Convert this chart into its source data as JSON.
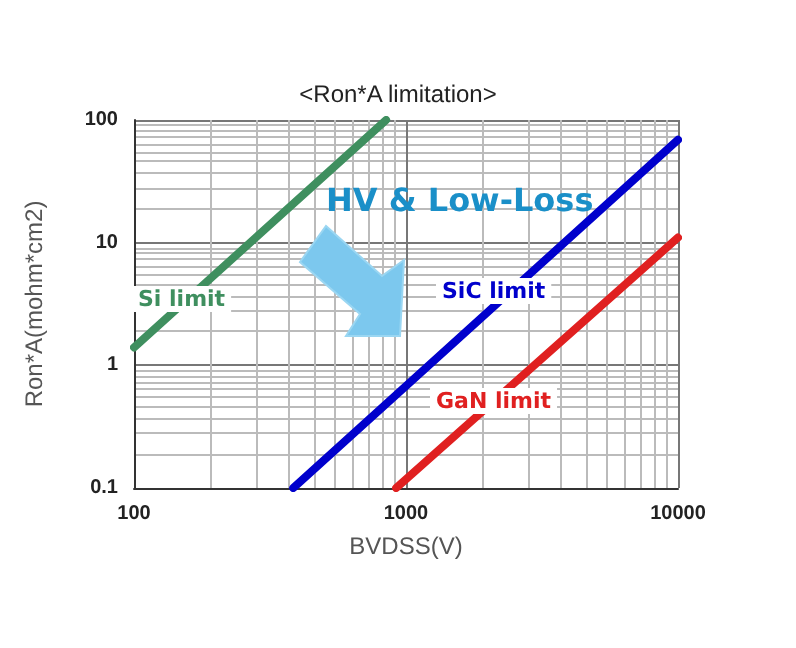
{
  "chart_data": {
    "type": "line",
    "title": "<Ron*A limitation>",
    "xlabel": "BVDSS(V)",
    "ylabel": "Ron*A(mohm*cm2)",
    "log": "xy",
    "xlim": [
      100,
      10000
    ],
    "xticks": [
      100,
      1000,
      10000
    ],
    "ylim": [
      0.1,
      100
    ],
    "yticks": [
      0.1,
      1,
      10,
      100
    ],
    "grid": true,
    "marker": "none",
    "line_style": "solid",
    "series": [
      {
        "color": "#3f8f5f",
        "x": [
          100,
          845
        ],
        "values": [
          1.4,
          100
        ]
      },
      {
        "color": "#0000cc",
        "x": [
          385,
          10000
        ],
        "values": [
          0.1,
          69
        ]
      },
      {
        "color": "#e02020",
        "x": [
          920,
          10000
        ],
        "values": [
          0.1,
          11
        ]
      }
    ],
    "annotations": [
      "Si limit",
      "SiC limit",
      "GaN limit",
      "HV & Low-Loss"
    ]
  }
}
